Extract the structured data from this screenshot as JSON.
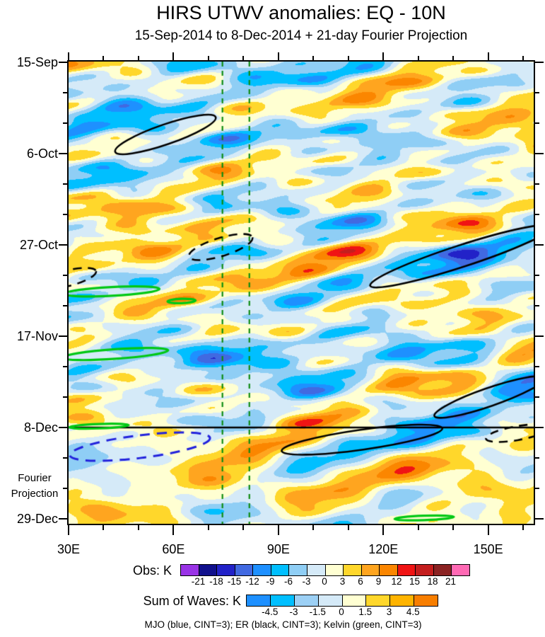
{
  "chart_data": {
    "type": "heatmap",
    "title": "HIRS UTWV anomalies: EQ - 10N",
    "subtitle": "15-Sep-2014 to 8-Dec-2014 + 21-day Fourier Projection",
    "x_axis": {
      "tick_labels": [
        "30E",
        "60E",
        "90E",
        "120E",
        "150E"
      ],
      "tick_lons": [
        30,
        60,
        90,
        120,
        150
      ],
      "minor_tick_step_deg": 10,
      "range_lon": [
        30,
        163
      ]
    },
    "y_axis": {
      "tick_labels": [
        "15-Sep",
        "6-Oct",
        "27-Oct",
        "17-Nov",
        "8-Dec",
        "29-Dec"
      ],
      "tick_days": [
        0,
        21,
        42,
        63,
        84,
        105
      ],
      "minor_tick_step_days": 7,
      "range_days": [
        0,
        106
      ]
    },
    "projection_label": [
      "Fourier",
      "Projection"
    ],
    "projection_start_date": "8-Dec",
    "projection_start_day": 84,
    "vertical_guides": {
      "lons": [
        74,
        81.7
      ],
      "color": "#0E8C12",
      "style": "dashed"
    },
    "obs_colorbar": {
      "label": "Obs: K",
      "units": "K",
      "levels": [
        -21,
        -18,
        -15,
        -12,
        -9,
        -6,
        -3,
        0,
        3,
        6,
        9,
        12,
        15,
        18,
        21
      ],
      "colors": [
        "#9933E6",
        "#10108C",
        "#2222C8",
        "#4169E1",
        "#1E90FF",
        "#00BFFF",
        "#8FCEF5",
        "#D5EAF8",
        "#FFFFD2",
        "#FFD72B",
        "#FFA51F",
        "#FB8600",
        "#F01414",
        "#C41E1E",
        "#8B2323",
        "#FF69B4"
      ]
    },
    "waves_colorbar": {
      "label": "Sum of Waves: K",
      "units": "K",
      "levels": [
        -4.5,
        -3,
        -1.5,
        0,
        1.5,
        3,
        4.5
      ],
      "colors": [
        "#1E90FF",
        "#00BFFF",
        "#9CD0F5",
        "#D5EAF8",
        "#FFFFD2",
        "#FFD72B",
        "#FFB400",
        "#F87E00"
      ]
    },
    "caption": "MJO (blue, CINT=3); ER (black, CINT=3); Kelvin (green, CINT=3)",
    "contour_colors": {
      "MJO": "#2222DC",
      "ER": "#000000",
      "Kelvin": "#00C814"
    },
    "contour_interval_K": 3,
    "wave_contours": [
      {
        "wave": "ER",
        "style": "solid",
        "lon": 57.7,
        "day": 16.6,
        "rx_deg": 15.2,
        "ry_days": 2.3,
        "tilt_deg": -19
      },
      {
        "wave": "ER",
        "style": "dashed",
        "lon": 73.5,
        "day": 42.5,
        "rx_deg": 9.5,
        "ry_days": 2.1,
        "tilt_deg": -17
      },
      {
        "wave": "ER",
        "style": "dashed",
        "lon": 29.6,
        "day": 49.7,
        "rx_deg": 8.5,
        "ry_days": 1.8,
        "tilt_deg": -14
      },
      {
        "wave": "ER",
        "style": "solid",
        "lon": 142.2,
        "day": 44.6,
        "rx_deg": 27.3,
        "ry_days": 2.5,
        "tilt_deg": -18
      },
      {
        "wave": "ER",
        "style": "solid",
        "lon": 150.3,
        "day": 77.0,
        "rx_deg": 16.6,
        "ry_days": 2.1,
        "tilt_deg": -19
      },
      {
        "wave": "ER",
        "style": "solid",
        "lon": 113.9,
        "day": 86.8,
        "rx_deg": 23.2,
        "ry_days": 2.3,
        "tilt_deg": -8
      },
      {
        "wave": "ER",
        "style": "dashed",
        "lon": 158.3,
        "day": 85.3,
        "rx_deg": 9.1,
        "ry_days": 1.6,
        "tilt_deg": -10
      },
      {
        "wave": "MJO",
        "style": "dashed",
        "lon": 50.4,
        "day": 88.4,
        "rx_deg": 20.2,
        "ry_days": 2.6,
        "tilt_deg": -7
      },
      {
        "wave": "Kelvin",
        "style": "solid",
        "lon": 42.3,
        "day": 52.7,
        "rx_deg": 13.7,
        "ry_days": 1.0,
        "tilt_deg": -3
      },
      {
        "wave": "Kelvin",
        "style": "solid",
        "lon": 62.3,
        "day": 54.9,
        "rx_deg": 4.0,
        "ry_days": 0.5,
        "tilt_deg": -2
      },
      {
        "wave": "Kelvin",
        "style": "solid",
        "lon": 43.3,
        "day": 67.1,
        "rx_deg": 15.2,
        "ry_days": 1.1,
        "tilt_deg": -4
      },
      {
        "wave": "Kelvin",
        "style": "solid",
        "lon": 38.7,
        "day": 83.7,
        "rx_deg": 8.5,
        "ry_days": 0.5,
        "tilt_deg": -2
      },
      {
        "wave": "Kelvin",
        "style": "solid",
        "lon": 131.7,
        "day": 104.8,
        "rx_deg": 8.5,
        "ry_days": 0.5,
        "tilt_deg": -2
      }
    ]
  }
}
